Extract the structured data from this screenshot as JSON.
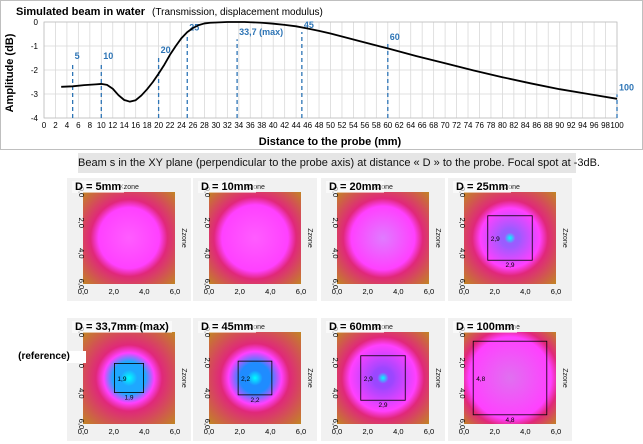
{
  "chart_data": {
    "type": "line",
    "title": "Simulated beam in water",
    "subtitle": "(Transmission, displacement modulus)",
    "xlabel": "Distance to the probe (mm)",
    "ylabel": "Amplitude (dB)",
    "xlim": [
      0,
      100
    ],
    "ylim": [
      -4,
      0
    ],
    "x_ticks": [
      0,
      2,
      4,
      6,
      8,
      10,
      12,
      14,
      16,
      18,
      20,
      22,
      24,
      26,
      28,
      30,
      32,
      34,
      36,
      38,
      40,
      42,
      44,
      46,
      48,
      50,
      52,
      54,
      56,
      58,
      60,
      62,
      64,
      66,
      68,
      70,
      72,
      74,
      76,
      78,
      80,
      82,
      84,
      86,
      88,
      90,
      92,
      94,
      96,
      98,
      100
    ],
    "y_ticks": [
      0,
      -1,
      -2,
      -3,
      -4
    ],
    "grid": true,
    "series": [
      {
        "color": "#000000",
        "x": [
          3,
          5,
          7,
          9,
          10,
          11,
          12,
          13,
          14,
          15,
          16,
          17,
          18,
          19,
          20,
          21,
          22,
          23,
          24,
          25,
          26,
          27,
          28,
          29,
          30,
          31,
          32,
          33,
          33.7,
          34,
          35,
          36,
          38,
          40,
          42,
          44,
          46,
          48,
          50,
          55,
          60,
          65,
          70,
          75,
          80,
          85,
          90,
          95,
          100
        ],
        "y": [
          -2.7,
          -2.68,
          -2.63,
          -2.6,
          -2.58,
          -2.62,
          -2.78,
          -3.05,
          -3.25,
          -3.32,
          -3.26,
          -3.06,
          -2.8,
          -2.5,
          -2.15,
          -1.78,
          -1.36,
          -1.0,
          -0.67,
          -0.42,
          -0.25,
          -0.13,
          -0.06,
          -0.03,
          -0.02,
          -0.01,
          0.0,
          0.0,
          0.0,
          0.0,
          0.0,
          -0.01,
          -0.03,
          -0.07,
          -0.12,
          -0.18,
          -0.27,
          -0.37,
          -0.48,
          -0.79,
          -1.1,
          -1.42,
          -1.72,
          -2.02,
          -2.3,
          -2.56,
          -2.8,
          -3.0,
          -3.2
        ]
      }
    ],
    "markers": [
      {
        "x": 5,
        "label": "5",
        "label_y": -1.55
      },
      {
        "x": 10,
        "label": "10",
        "label_y": -1.55
      },
      {
        "x": 20,
        "label": "20",
        "label_y": -1.3
      },
      {
        "x": 25,
        "label": "25",
        "label_y": -0.35
      },
      {
        "x": 33.7,
        "label": "33,7 (max)",
        "label_y": -0.55
      },
      {
        "x": 45,
        "label": "45",
        "label_y": -0.25
      },
      {
        "x": 60,
        "label": "60",
        "label_y": -0.75
      },
      {
        "x": 100,
        "label": "100",
        "label_y": -2.85
      }
    ],
    "marker_color": "#2e75b6"
  },
  "caption": "Beam s in the XY plane (perpendicular to the probe axis) at distance « D » to the probe. Focal spot at -3dB.",
  "panels": [
    {
      "label": "D = 5mm",
      "inner": "#ff5cff",
      "outer": "#c08a20",
      "ring": 0.46,
      "spot": 0,
      "box": 0,
      "box_label": ""
    },
    {
      "label": "D = 10mm",
      "inner": "#ff5cff",
      "outer": "#c08a20",
      "ring": 0.5,
      "spot": 0,
      "box": 0,
      "box_label": ""
    },
    {
      "label": "D = 20mm",
      "inner": "#e07bff",
      "outer": "#c08a20",
      "ring": 0.48,
      "spot": 0,
      "box": 0,
      "box_label": ""
    },
    {
      "label": "D = 25mm",
      "inner": "#9a5cff",
      "outer": "#c08a20",
      "ring": 0.45,
      "spot": 0.28,
      "box": 2.9,
      "box_label": "2,9"
    },
    {
      "label": "D = 33,7mm (max)",
      "inner": "#1ea8ff",
      "outer": "#c08a20",
      "ring": 0.38,
      "spot": 0.55,
      "box": 1.9,
      "box_label": "1,9"
    },
    {
      "label": "D = 45mm",
      "inner": "#1f8cff",
      "outer": "#c08a20",
      "ring": 0.4,
      "spot": 0.5,
      "box": 2.2,
      "box_label": "2,2"
    },
    {
      "label": "D = 60mm",
      "inner": "#9a47ff",
      "outer": "#c08a20",
      "ring": 0.5,
      "spot": 0.3,
      "box": 2.9,
      "box_label": "2,9"
    },
    {
      "label": "D = 100mm",
      "inner": "#e070f0",
      "outer": "#c08a20",
      "ring": 0.62,
      "spot": 0,
      "box": 4.8,
      "box_label": "4,8"
    }
  ],
  "panel_axis": {
    "x_title": "Xzone",
    "y_title": "Zzone",
    "x_ticks": [
      "0,0",
      "2,0",
      "4,0",
      "6,0"
    ],
    "y_ticks": [
      "0,0",
      "2,0",
      "4,0",
      "6,0"
    ]
  },
  "reference_note": "(reference)"
}
